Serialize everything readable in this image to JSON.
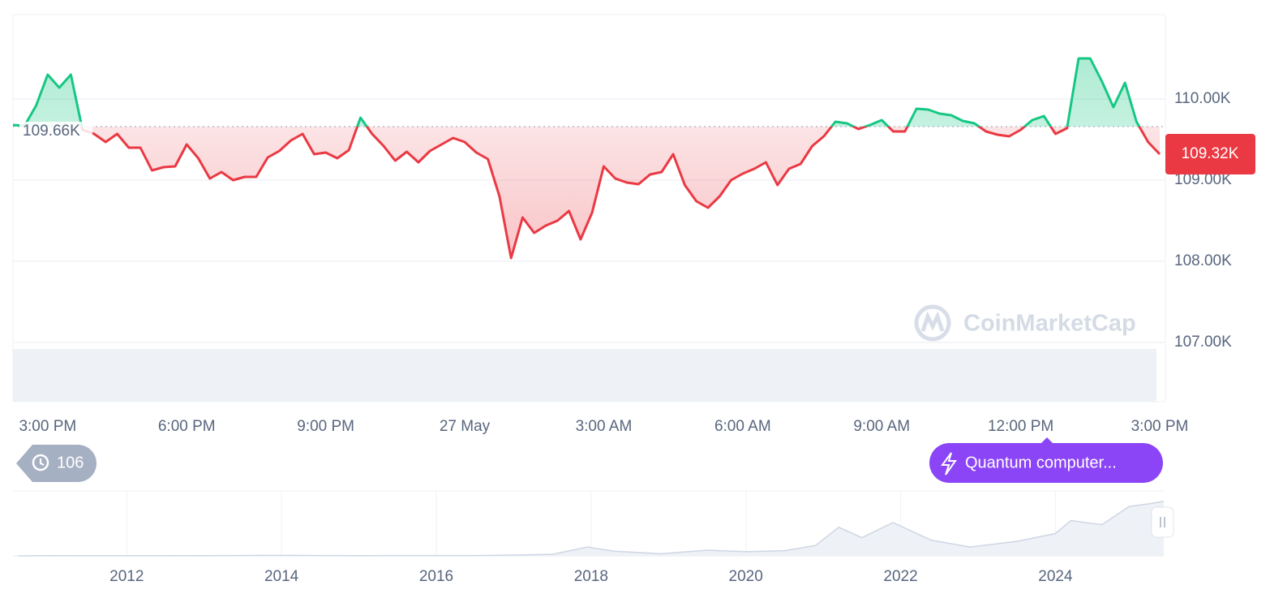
{
  "chart_data": {
    "type": "line",
    "x": [
      14.25,
      14.5,
      14.75,
      15,
      15.25,
      15.5,
      15.75,
      16,
      16.25,
      16.5,
      16.75,
      17,
      17.25,
      17.5,
      17.75,
      18,
      18.25,
      18.5,
      18.75,
      19,
      19.25,
      19.5,
      19.75,
      20,
      20.25,
      20.5,
      20.75,
      21,
      21.25,
      21.5,
      21.75,
      22,
      22.25,
      22.5,
      22.75,
      23,
      23.25,
      23.5,
      23.75,
      24,
      24.25,
      24.5,
      24.75,
      25,
      25.25,
      25.5,
      25.75,
      26,
      26.25,
      26.5,
      26.75,
      27,
      27.25,
      27.5,
      27.75,
      28,
      28.25,
      28.5,
      28.75,
      29,
      29.25,
      29.5,
      29.75,
      30,
      30.25,
      30.5,
      30.75,
      31,
      31.25,
      31.5,
      31.75,
      32,
      32.25,
      32.5,
      32.75,
      33,
      33.25,
      33.5,
      33.75,
      34,
      34.25,
      34.5,
      34.75,
      35,
      35.25,
      35.5,
      35.75,
      36,
      36.25,
      36.5,
      36.75,
      37,
      37.25,
      37.5,
      37.75,
      38,
      38.25,
      38.5,
      38.75,
      39
    ],
    "values": [
      109.68,
      109.67,
      109.92,
      110.3,
      110.14,
      110.3,
      109.62,
      109.57,
      109.47,
      109.57,
      109.4,
      109.4,
      109.12,
      109.16,
      109.17,
      109.44,
      109.27,
      109.02,
      109.1,
      109.0,
      109.04,
      109.04,
      109.28,
      109.36,
      109.49,
      109.57,
      109.32,
      109.34,
      109.27,
      109.37,
      109.77,
      109.57,
      109.42,
      109.24,
      109.35,
      109.22,
      109.36,
      109.44,
      109.52,
      109.47,
      109.34,
      109.26,
      108.8,
      108.04,
      108.54,
      108.35,
      108.44,
      108.5,
      108.62,
      108.27,
      108.6,
      109.17,
      109.02,
      108.97,
      108.95,
      109.07,
      109.1,
      109.32,
      108.94,
      108.74,
      108.66,
      108.8,
      109.0,
      109.08,
      109.14,
      109.22,
      108.94,
      109.14,
      109.2,
      109.42,
      109.54,
      109.72,
      109.7,
      109.63,
      109.68,
      109.74,
      109.6,
      109.6,
      109.88,
      109.87,
      109.82,
      109.8,
      109.73,
      109.7,
      109.6,
      109.56,
      109.54,
      109.62,
      109.74,
      109.79,
      109.57,
      109.64,
      110.5,
      110.5,
      110.22,
      109.9,
      110.2,
      109.72,
      109.47,
      109.32
    ],
    "up_color": "#16c784",
    "down_color": "#ea3943",
    "baseline": {
      "value": 109.66,
      "label": "109.66K"
    },
    "last": {
      "value": 109.32,
      "label": "109.32K"
    },
    "xlim": [
      14.25,
      39
    ],
    "xticks": [
      {
        "value": 15,
        "label": "3:00 PM"
      },
      {
        "value": 18,
        "label": "6:00 PM"
      },
      {
        "value": 21,
        "label": "9:00 PM"
      },
      {
        "value": 24,
        "label": "27 May"
      },
      {
        "value": 27,
        "label": "3:00 AM"
      },
      {
        "value": 30,
        "label": "6:00 AM"
      },
      {
        "value": 33,
        "label": "9:00 AM"
      },
      {
        "value": 36,
        "label": "12:00 PM"
      },
      {
        "value": 39,
        "label": "3:00 PM"
      }
    ],
    "ylim": [
      106.27,
      111.04
    ],
    "yticks": [
      {
        "value": 107,
        "label": "107.00K"
      },
      {
        "value": 108,
        "label": "108.00K"
      },
      {
        "value": 109,
        "label": "109.00K"
      },
      {
        "value": 110,
        "label": "110.00K"
      }
    ],
    "grid": true,
    "watermark": "CoinMarketCap",
    "history_badge": "106",
    "news_badge": "Quantum computer...",
    "navigator": {
      "type": "area",
      "x": [
        2010.6,
        2011,
        2011.5,
        2012,
        2013,
        2013.9,
        2014.5,
        2015,
        2016,
        2016.5,
        2017,
        2017.5,
        2017.95,
        2018.3,
        2018.9,
        2019.5,
        2020,
        2020.5,
        2020.9,
        2021.2,
        2021.5,
        2021.9,
        2022.4,
        2022.9,
        2023.5,
        2024,
        2024.2,
        2024.6,
        2024.95,
        2025.2,
        2025.4
      ],
      "values": [
        0,
        0.5,
        0.2,
        0.1,
        0.5,
        1,
        0.6,
        0.3,
        0.6,
        0.7,
        1.5,
        3,
        17,
        9,
        4,
        11,
        8,
        10,
        20,
        55,
        35,
        64,
        30,
        17,
        28,
        43,
        68,
        60,
        95,
        100,
        105
      ],
      "color": "#cfd6e4",
      "fill": "#eef1f6",
      "xlim": [
        2010.53,
        2025.4
      ],
      "ylim": [
        0,
        125
      ],
      "xticks": [
        2012,
        2014,
        2016,
        2018,
        2020,
        2022,
        2024
      ]
    }
  }
}
